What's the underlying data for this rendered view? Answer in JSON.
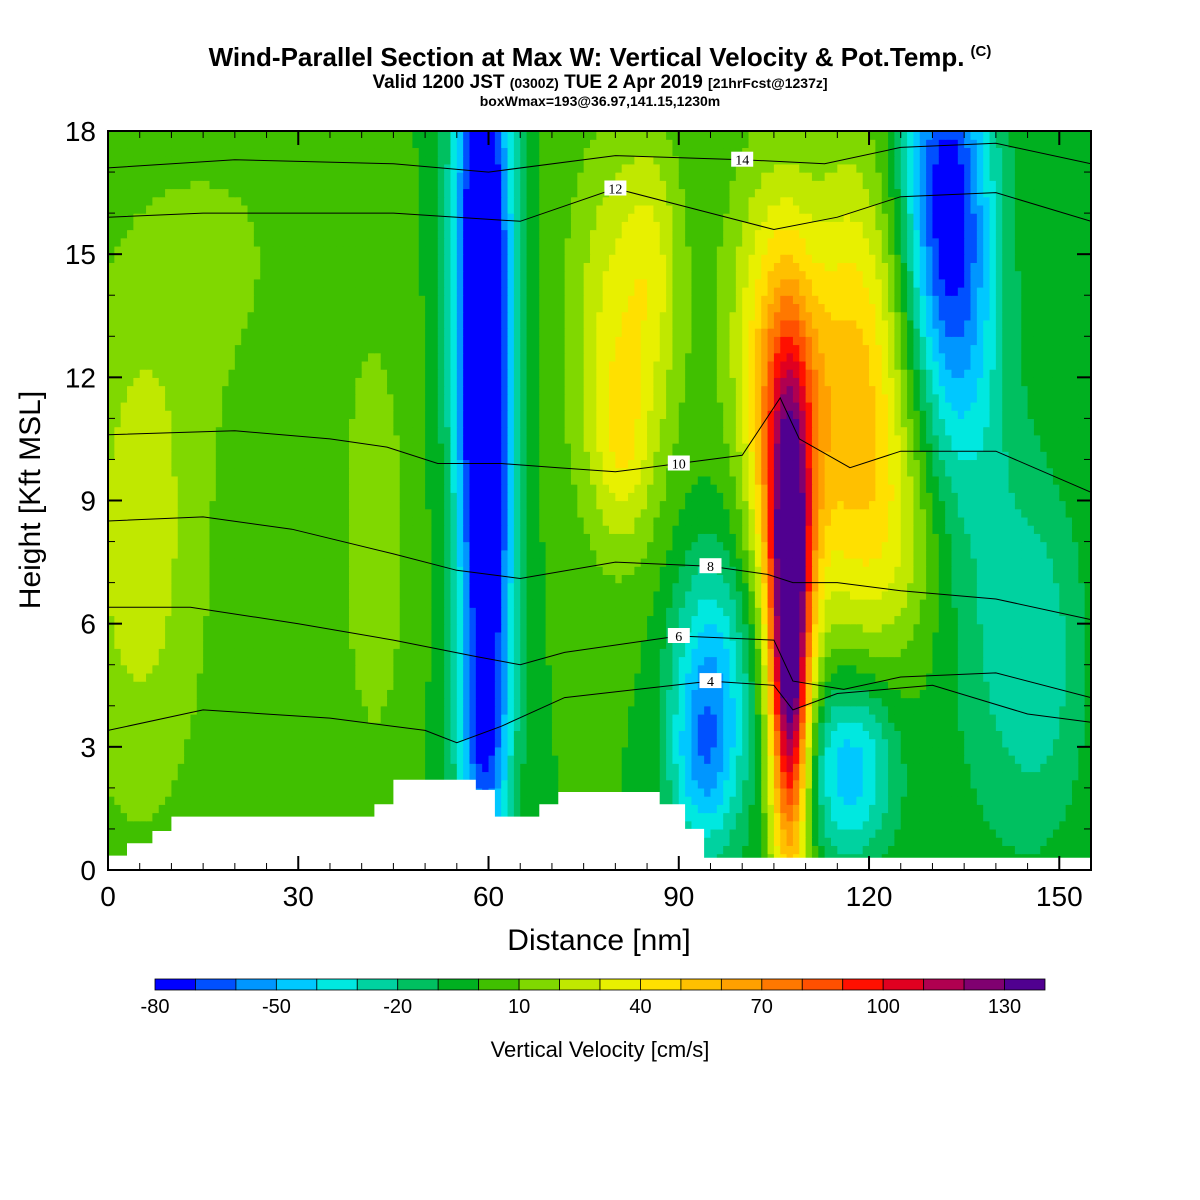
{
  "title": "Wind-Parallel Section at Max W: Vertical Velocity & Pot.Temp.",
  "title_mark": "(C)",
  "subtitle_main": "Valid 1200 JST",
  "subtitle_utc": "(0300Z)",
  "subtitle_date": "TUE 2 Apr 2019",
  "subtitle_fcst": "[21hrFcst@1237z]",
  "subsubtitle": "boxWmax=193@36.97,141.15,1230m",
  "chart_data": {
    "type": "heatmap",
    "xlabel": "Distance [nm]",
    "ylabel": "Height [Kft MSL]",
    "xlim": [
      0,
      155
    ],
    "ylim": [
      0,
      18
    ],
    "xticks": [
      0,
      30,
      60,
      90,
      120,
      150
    ],
    "yticks": [
      0,
      3,
      6,
      9,
      12,
      15,
      18
    ],
    "colorbar": {
      "label": "Vertical Velocity [cm/s]",
      "tick_labels": [
        "-80",
        "-50",
        "-20",
        "10",
        "40",
        "70",
        "100",
        "130"
      ],
      "tick_values": [
        -80,
        -50,
        -20,
        10,
        40,
        70,
        100,
        130
      ],
      "min": -80,
      "step": 10,
      "colors": [
        "#0000ff",
        "#0050ff",
        "#0096ff",
        "#00c8ff",
        "#00e8e0",
        "#00d2a0",
        "#00c060",
        "#00b020",
        "#40c000",
        "#80d800",
        "#c0e800",
        "#e8f000",
        "#ffe000",
        "#ffc000",
        "#ffa000",
        "#ff7800",
        "#ff5000",
        "#ff1000",
        "#e00020",
        "#b00050",
        "#800070",
        "#500090"
      ]
    },
    "terrain": [
      [
        0,
        0.35
      ],
      [
        3,
        0.35
      ],
      [
        3,
        0.65
      ],
      [
        7,
        0.65
      ],
      [
        7,
        0.95
      ],
      [
        10,
        0.95
      ],
      [
        10,
        1.3
      ],
      [
        42,
        1.3
      ],
      [
        42,
        1.6
      ],
      [
        45,
        1.6
      ],
      [
        45,
        2.2
      ],
      [
        58,
        2.2
      ],
      [
        58,
        1.95
      ],
      [
        61,
        1.95
      ],
      [
        61,
        1.3
      ],
      [
        68,
        1.3
      ],
      [
        68,
        1.6
      ],
      [
        71,
        1.6
      ],
      [
        71,
        1.9
      ],
      [
        87,
        1.9
      ],
      [
        87,
        1.6
      ],
      [
        91,
        1.6
      ],
      [
        91,
        1.0
      ],
      [
        94,
        1.0
      ],
      [
        94,
        0.3
      ]
    ],
    "theta_contours": [
      {
        "level": 4,
        "label": "4",
        "points": [
          [
            0,
            3.4
          ],
          [
            15,
            3.9
          ],
          [
            35,
            3.7
          ],
          [
            50,
            3.4
          ],
          [
            55,
            3.1
          ],
          [
            62,
            3.5
          ],
          [
            72,
            4.2
          ],
          [
            95,
            4.6
          ],
          [
            105,
            4.5
          ],
          [
            108,
            3.9
          ],
          [
            115,
            4.3
          ],
          [
            130,
            4.5
          ],
          [
            145,
            3.8
          ],
          [
            155,
            3.6
          ]
        ]
      },
      {
        "level": 6,
        "label": "6",
        "points": [
          [
            0,
            6.4
          ],
          [
            13,
            6.4
          ],
          [
            30,
            6.0
          ],
          [
            45,
            5.6
          ],
          [
            58,
            5.2
          ],
          [
            65,
            5.0
          ],
          [
            72,
            5.3
          ],
          [
            90,
            5.7
          ],
          [
            105,
            5.6
          ],
          [
            108,
            4.6
          ],
          [
            116,
            4.4
          ],
          [
            125,
            4.7
          ],
          [
            140,
            4.8
          ],
          [
            155,
            4.2
          ]
        ]
      },
      {
        "level": 8,
        "label": "8",
        "points": [
          [
            0,
            8.5
          ],
          [
            15,
            8.6
          ],
          [
            29,
            8.3
          ],
          [
            45,
            7.7
          ],
          [
            55,
            7.3
          ],
          [
            65,
            7.1
          ],
          [
            80,
            7.5
          ],
          [
            95,
            7.4
          ],
          [
            104,
            7.2
          ],
          [
            108,
            7.0
          ],
          [
            115,
            7.0
          ],
          [
            125,
            6.8
          ],
          [
            140,
            6.6
          ],
          [
            155,
            6.1
          ]
        ]
      },
      {
        "level": 10,
        "label": "10",
        "points": [
          [
            0,
            10.6
          ],
          [
            20,
            10.7
          ],
          [
            35,
            10.5
          ],
          [
            44,
            10.3
          ],
          [
            52,
            9.9
          ],
          [
            62,
            9.9
          ],
          [
            71,
            9.8
          ],
          [
            80,
            9.7
          ],
          [
            90,
            9.9
          ],
          [
            100,
            10.1
          ],
          [
            106,
            11.5
          ],
          [
            109,
            10.5
          ],
          [
            117,
            9.8
          ],
          [
            125,
            10.2
          ],
          [
            140,
            10.2
          ],
          [
            155,
            9.2
          ]
        ]
      },
      {
        "level": 12,
        "label": "12",
        "points": [
          [
            0,
            15.9
          ],
          [
            15,
            16.0
          ],
          [
            27,
            16.0
          ],
          [
            45,
            16.0
          ],
          [
            55,
            15.9
          ],
          [
            65,
            15.8
          ],
          [
            80,
            16.6
          ],
          [
            95,
            16.0
          ],
          [
            105,
            15.6
          ],
          [
            115,
            15.9
          ],
          [
            125,
            16.4
          ],
          [
            140,
            16.5
          ],
          [
            155,
            15.8
          ]
        ]
      },
      {
        "level": 14,
        "label": "14",
        "points": [
          [
            0,
            17.1
          ],
          [
            20,
            17.3
          ],
          [
            45,
            17.2
          ],
          [
            60,
            17.0
          ],
          [
            80,
            17.4
          ],
          [
            100,
            17.3
          ],
          [
            113,
            17.2
          ],
          [
            125,
            17.6
          ],
          [
            140,
            17.7
          ],
          [
            155,
            17.2
          ]
        ]
      }
    ]
  }
}
